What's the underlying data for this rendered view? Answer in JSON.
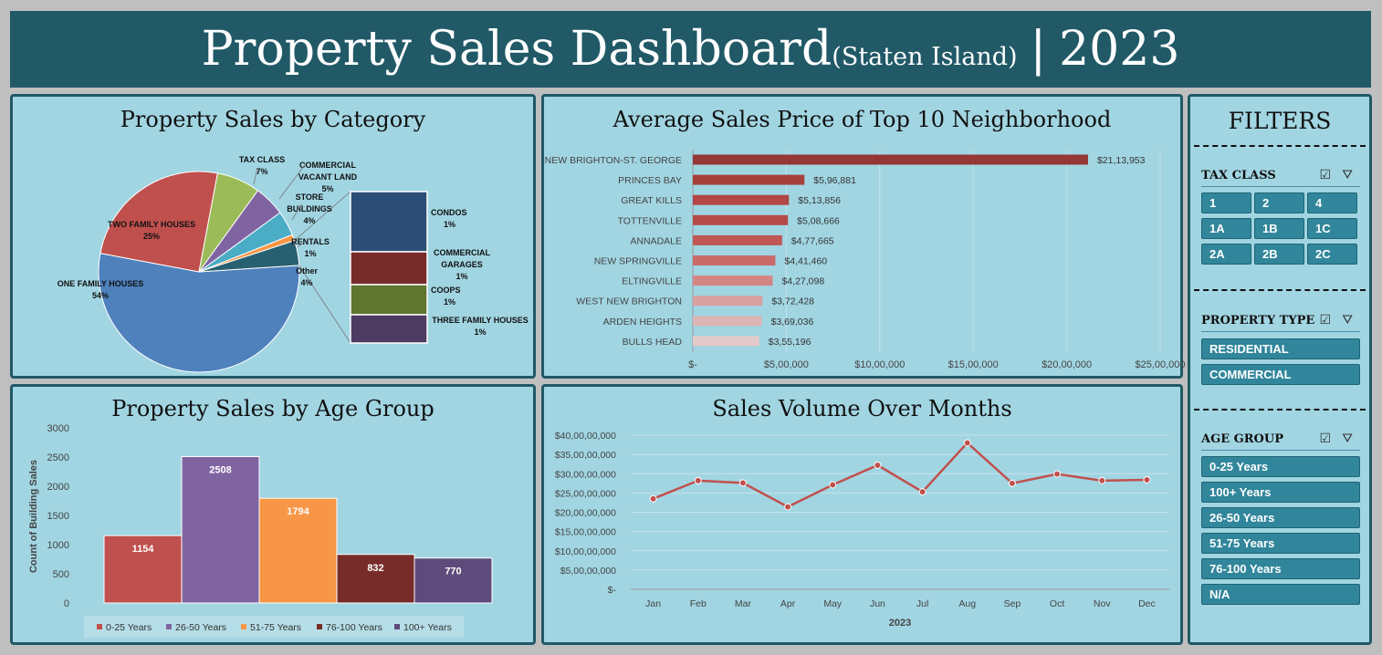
{
  "header": {
    "title": "Property Sales Dashboard",
    "subtitle": "(Staten Island)",
    "separator": "|",
    "year": "2023"
  },
  "panels": {
    "category_title": "Property Sales by Category",
    "neighborhood_title": "Average Sales Price of Top 10 Neighborhood",
    "age_title": "Property Sales by Age Group",
    "volume_title": "Sales Volume Over Months"
  },
  "filters": {
    "title": "FILTERS",
    "tax_class": {
      "label": "TAX CLASS",
      "options": [
        "1",
        "2",
        "4",
        "1A",
        "1B",
        "1C",
        "2A",
        "2B",
        "2C"
      ]
    },
    "property_type": {
      "label": "PROPERTY TYPE",
      "options": [
        "RESIDENTIAL",
        "COMMERCIAL"
      ]
    },
    "age_group": {
      "label": "AGE GROUP",
      "options": [
        "0-25 Years",
        "100+ Years",
        "26-50 Years",
        "51-75 Years",
        "76-100 Years",
        "N/A"
      ]
    },
    "icons": {
      "multiselect": "multi-select-icon",
      "clear": "clear-filter-icon"
    }
  },
  "chart_data": [
    {
      "type": "pie",
      "title": "Property Sales by Category",
      "slices": [
        {
          "label": "ONE FAMILY HOUSES",
          "value": 54,
          "pct": "54%",
          "color": "#4f81bd"
        },
        {
          "label": "TWO FAMILY HOUSES",
          "value": 25,
          "pct": "25%",
          "color": "#c0504d"
        },
        {
          "label": "TAX CLASS",
          "value": 7,
          "pct": "7%",
          "color": "#9bbb59"
        },
        {
          "label": "COMMERCIAL VACANT LAND",
          "value": 5,
          "pct": "5%",
          "color": "#8064a2"
        },
        {
          "label": "STORE BUILDINGS",
          "value": 4,
          "pct": "4%",
          "color": "#4bacc6"
        },
        {
          "label": "RENTALS",
          "value": 1,
          "pct": "1%",
          "color": "#f79646"
        },
        {
          "label": "Other",
          "value": 4,
          "pct": "4%",
          "color": "#276070"
        }
      ],
      "other_breakdown": [
        {
          "label": "CONDOS",
          "value": 1,
          "pct": "1%",
          "color": "#2c4d75"
        },
        {
          "label": "COMMERCIAL GARAGES",
          "value": 1,
          "pct": "1%",
          "color": "#772c2a"
        },
        {
          "label": "COOPS",
          "value": 1,
          "pct": "1%",
          "color": "#5f7530"
        },
        {
          "label": "THREE FAMILY HOUSES",
          "value": 1,
          "pct": "1%",
          "color": "#4d3b62"
        }
      ]
    },
    {
      "type": "bar",
      "orientation": "horizontal",
      "title": "Average Sales Price of Top 10 Neighborhood",
      "categories": [
        "NEW BRIGHTON-ST. GEORGE",
        "PRINCES BAY",
        "GREAT KILLS",
        "TOTTENVILLE",
        "ANNADALE",
        "NEW SPRINGVILLE",
        "ELTINGVILLE",
        "WEST NEW BRIGHTON",
        "ARDEN HEIGHTS",
        "BULLS HEAD"
      ],
      "values": [
        2113953,
        596881,
        513856,
        508666,
        477665,
        441460,
        427098,
        372428,
        369036,
        355196
      ],
      "value_labels": [
        "$21,13,953",
        "$5,96,881",
        "$5,13,856",
        "$5,08,666",
        "$4,77,665",
        "$4,41,460",
        "$4,27,098",
        "$3,72,428",
        "$3,69,036",
        "$3,55,196"
      ],
      "colors": [
        "#953735",
        "#a53f3c",
        "#b24745",
        "#b34a47",
        "#c05754",
        "#c96b69",
        "#d38583",
        "#d9a0a0",
        "#ddb5b5",
        "#e4c9c9"
      ],
      "xlim": [
        0,
        2500000
      ],
      "ticks": [
        "$-",
        "$5,00,000",
        "$10,00,000",
        "$15,00,000",
        "$20,00,000",
        "$25,00,000"
      ]
    },
    {
      "type": "bar",
      "title": "Property Sales by Age Group",
      "ylabel": "Count of Building Sales",
      "categories": [
        "0-25 Years",
        "26-50 Years",
        "51-75 Years",
        "76-100 Years",
        "100+ Years"
      ],
      "values": [
        1154,
        2508,
        1794,
        832,
        770
      ],
      "colors": [
        "#c0504d",
        "#8064a2",
        "#f79646",
        "#772c2a",
        "#5f4b7b"
      ],
      "ylim": [
        0,
        3000
      ],
      "yticks": [
        "0",
        "500",
        "1000",
        "1500",
        "2000",
        "2500",
        "3000"
      ],
      "legend": "bottom"
    },
    {
      "type": "line",
      "title": "Sales Volume Over Months",
      "xlabel": "2023",
      "x": [
        "Jan",
        "Feb",
        "Mar",
        "Apr",
        "May",
        "Jun",
        "Jul",
        "Aug",
        "Sep",
        "Oct",
        "Nov",
        "Dec"
      ],
      "values": [
        235000000,
        282000000,
        276000000,
        214000000,
        271000000,
        322000000,
        253000000,
        380000000,
        275000000,
        299000000,
        282000000,
        284000000
      ],
      "ylim": [
        0,
        400000000
      ],
      "yticks": [
        "$-",
        "$5,00,00,000",
        "$10,00,00,000",
        "$15,00,00,000",
        "$20,00,00,000",
        "$25,00,00,000",
        "$30,00,00,000",
        "$35,00,00,000",
        "$40,00,00,000"
      ],
      "color": "#c0504d",
      "grid": true
    }
  ]
}
